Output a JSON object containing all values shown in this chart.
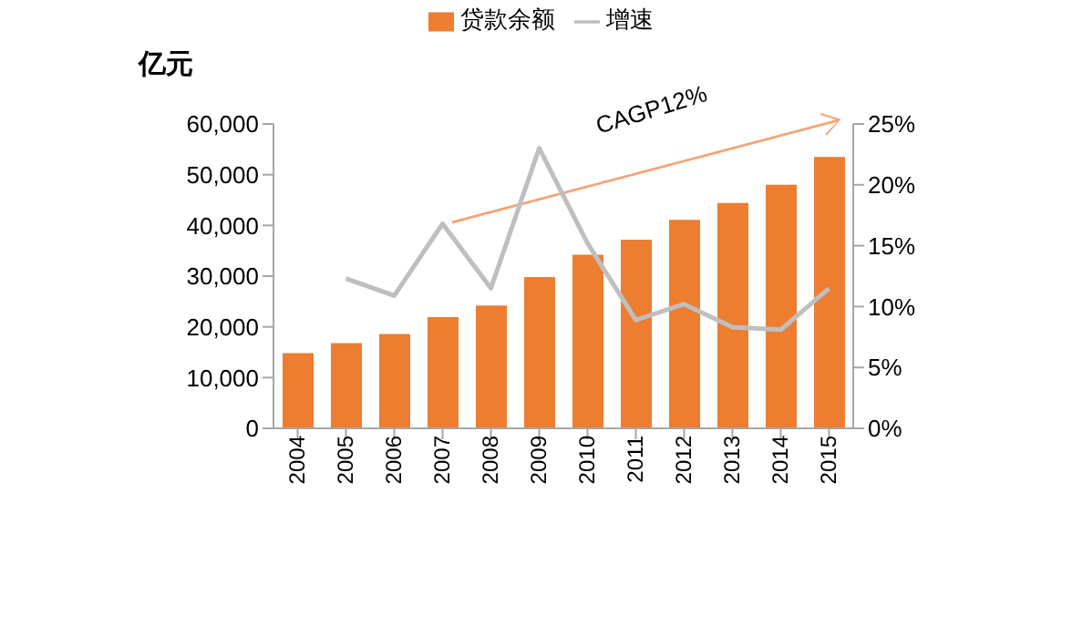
{
  "chart_data": {
    "type": "bar",
    "ylabel": "亿元",
    "categories": [
      "2004",
      "2005",
      "2006",
      "2007",
      "2008",
      "2009",
      "2010",
      "2011",
      "2012",
      "2013",
      "2014",
      "2015"
    ],
    "series": [
      {
        "name": "贷款余额",
        "type": "bar",
        "color": "#ed7d31",
        "values": [
          14800,
          16800,
          18600,
          21900,
          24200,
          29800,
          34200,
          37200,
          41100,
          44400,
          48000,
          53500
        ]
      },
      {
        "name": "增速",
        "type": "line",
        "axis": "y2",
        "color": "#bfbfbf",
        "values": [
          null,
          12.3,
          10.9,
          16.8,
          11.5,
          23,
          15.2,
          8.9,
          10.2,
          8.3,
          8.1,
          11.5
        ]
      }
    ],
    "ylim": [
      0,
      60000
    ],
    "yticks": [
      {
        "value": 0,
        "label": "0"
      },
      {
        "value": 10000,
        "label": "10,000"
      },
      {
        "value": 20000,
        "label": "20,000"
      },
      {
        "value": 30000,
        "label": "30,000"
      },
      {
        "value": 40000,
        "label": "40,000"
      },
      {
        "value": 50000,
        "label": "50,000"
      },
      {
        "value": 60000,
        "label": "60,000"
      }
    ],
    "y2lim": [
      0,
      25
    ],
    "y2ticks": [
      {
        "value": 0,
        "label": "0%"
      },
      {
        "value": 5,
        "label": "5%"
      },
      {
        "value": 10,
        "label": "10%"
      },
      {
        "value": 15,
        "label": "15%"
      },
      {
        "value": 20,
        "label": "20%"
      },
      {
        "value": 25,
        "label": "25%"
      }
    ],
    "annotations": [
      "CAGP12%"
    ],
    "legend": "top",
    "grid": false
  }
}
